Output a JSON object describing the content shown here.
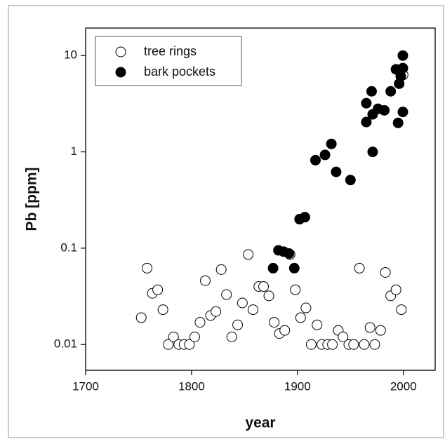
{
  "chart_data": {
    "type": "scatter",
    "xlabel": "year",
    "ylabel": "Pb [ppm]",
    "xlim": [
      1700,
      2030
    ],
    "xticks": [
      1700,
      1800,
      1900,
      2000
    ],
    "ylim": [
      0.0054,
      19.3
    ],
    "yticks": [
      0.01,
      0.1,
      1,
      10
    ],
    "ylog": true,
    "legend": "upper left",
    "series": [
      {
        "name": "tree rings",
        "color": "#ffffff",
        "x": [
          1752.5,
          1758,
          1763,
          1768,
          1773,
          1778,
          1783,
          1788,
          1793,
          1798,
          1803,
          1808,
          1813,
          1818,
          1823,
          1828,
          1833,
          1838,
          1843.5,
          1848,
          1853.5,
          1858,
          1863.5,
          1868,
          1873,
          1878,
          1883,
          1888,
          1893,
          1898,
          1903,
          1908,
          1913,
          1918.5,
          1923,
          1928.5,
          1933,
          1938.5,
          1943,
          1948.5,
          1953,
          1958.5,
          1963,
          1968.5,
          1973,
          1978.5,
          1983,
          1988,
          1993,
          1998,
          1999.7
        ],
        "values": [
          0.019,
          0.062,
          0.034,
          0.037,
          0.023,
          0.01,
          0.012,
          0.01,
          0.01,
          0.01,
          0.012,
          0.017,
          0.046,
          0.02,
          0.022,
          0.06,
          0.033,
          0.012,
          0.016,
          0.027,
          0.086,
          0.023,
          0.04,
          0.04,
          0.032,
          0.017,
          0.013,
          0.014,
          0.086,
          0.037,
          0.019,
          0.024,
          0.01,
          0.016,
          0.01,
          0.01,
          0.01,
          0.014,
          0.012,
          0.01,
          0.01,
          0.062,
          0.01,
          0.015,
          0.01,
          0.014,
          0.056,
          0.032,
          0.037,
          0.023,
          6.3
        ]
      },
      {
        "name": "bark pockets",
        "color": "#000000",
        "x": [
          1877,
          1882,
          1887,
          1892,
          1897,
          1902,
          1907,
          1917,
          1926,
          1932,
          1936.5,
          1950,
          1965,
          1965,
          1970,
          1971,
          1971,
          1976,
          1982,
          1988,
          1993,
          1995,
          1996,
          1997.5,
          1999.5,
          1999.5,
          1999.5
        ],
        "values": [
          0.062,
          0.095,
          0.092,
          0.088,
          0.062,
          0.2,
          0.21,
          0.82,
          0.93,
          1.21,
          0.62,
          0.51,
          2.04,
          3.2,
          4.25,
          2.45,
          1.0,
          2.8,
          2.7,
          4.25,
          7.2,
          2.0,
          5.1,
          6.1,
          10,
          7.4,
          2.6
        ]
      }
    ]
  }
}
